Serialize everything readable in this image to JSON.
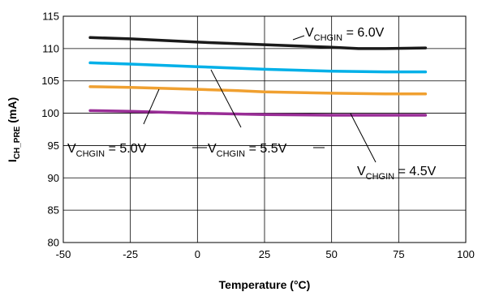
{
  "chart_data": {
    "type": "line",
    "title": "",
    "xlabel": "Temperature (°C)",
    "ylabel_main": "I",
    "ylabel_sub": "CH_PRE",
    "ylabel_unit": " (mA)",
    "xlim": [
      -50,
      100
    ],
    "ylim": [
      80,
      115
    ],
    "xticks": [
      -50,
      -25,
      0,
      25,
      50,
      75,
      100
    ],
    "yticks": [
      80,
      85,
      90,
      95,
      100,
      105,
      110,
      115
    ],
    "grid": true,
    "series": [
      {
        "name_main": "V",
        "name_sub": "CHGIN",
        "name_tail": " = 6.0V",
        "color": "#1a1a1a",
        "x": [
          -40,
          -25,
          0,
          25,
          50,
          60,
          70,
          85
        ],
        "y": [
          111.7,
          111.5,
          111.0,
          110.6,
          110.2,
          110.0,
          110.0,
          110.1
        ]
      },
      {
        "name_main": "V",
        "name_sub": "CHGIN",
        "name_tail": " = 5.5V",
        "color": "#00b0e8",
        "x": [
          -40,
          -25,
          0,
          25,
          50,
          70,
          85
        ],
        "y": [
          107.8,
          107.6,
          107.2,
          106.8,
          106.5,
          106.4,
          106.4
        ]
      },
      {
        "name_main": "V",
        "name_sub": "CHGIN",
        "name_tail": " = 5.0V",
        "color": "#f0a030",
        "x": [
          -40,
          -25,
          0,
          15,
          25,
          50,
          70,
          85
        ],
        "y": [
          104.1,
          104.0,
          103.7,
          103.5,
          103.3,
          103.1,
          103.0,
          103.0
        ]
      },
      {
        "name_main": "V",
        "name_sub": "CHGIN",
        "name_tail": " = 4.5V",
        "color": "#992d96",
        "x": [
          -40,
          -25,
          0,
          25,
          50,
          70,
          85
        ],
        "y": [
          100.4,
          100.3,
          100.0,
          99.8,
          99.7,
          99.7,
          99.7
        ]
      }
    ]
  }
}
